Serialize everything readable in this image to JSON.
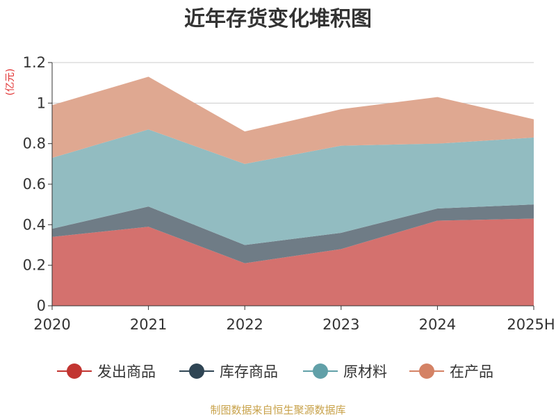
{
  "chart_data": {
    "type": "area",
    "stacked": true,
    "title": "近年存货变化堆积图",
    "unit_label": "(亿元)",
    "categories": [
      "2020",
      "2021",
      "2022",
      "2023",
      "2024",
      "2025H"
    ],
    "ylim": [
      0,
      1.2
    ],
    "yticks": [
      "0",
      "0.2",
      "0.4",
      "0.6",
      "0.8",
      "1",
      "1.2"
    ],
    "ytick_values": [
      0,
      0.2,
      0.4,
      0.6,
      0.8,
      1.0,
      1.2
    ],
    "grid": true,
    "legend_position": "bottom",
    "series": [
      {
        "name": "发出商品",
        "color": "#c23531",
        "fill": "#d4716e",
        "values": [
          0.34,
          0.39,
          0.21,
          0.28,
          0.42,
          0.43
        ]
      },
      {
        "name": "库存商品",
        "color": "#2f4554",
        "fill": "#6f7c86",
        "values": [
          0.04,
          0.1,
          0.09,
          0.08,
          0.06,
          0.07
        ]
      },
      {
        "name": "原材料",
        "color": "#61a0a8",
        "fill": "#92bcc1",
        "values": [
          0.35,
          0.38,
          0.4,
          0.43,
          0.32,
          0.33
        ]
      },
      {
        "name": "在产品",
        "color": "#d48265",
        "fill": "#dfa891",
        "values": [
          0.26,
          0.26,
          0.16,
          0.18,
          0.23,
          0.09
        ]
      }
    ]
  },
  "footer": {
    "source": "制图数据来自恒生聚源数据库"
  }
}
